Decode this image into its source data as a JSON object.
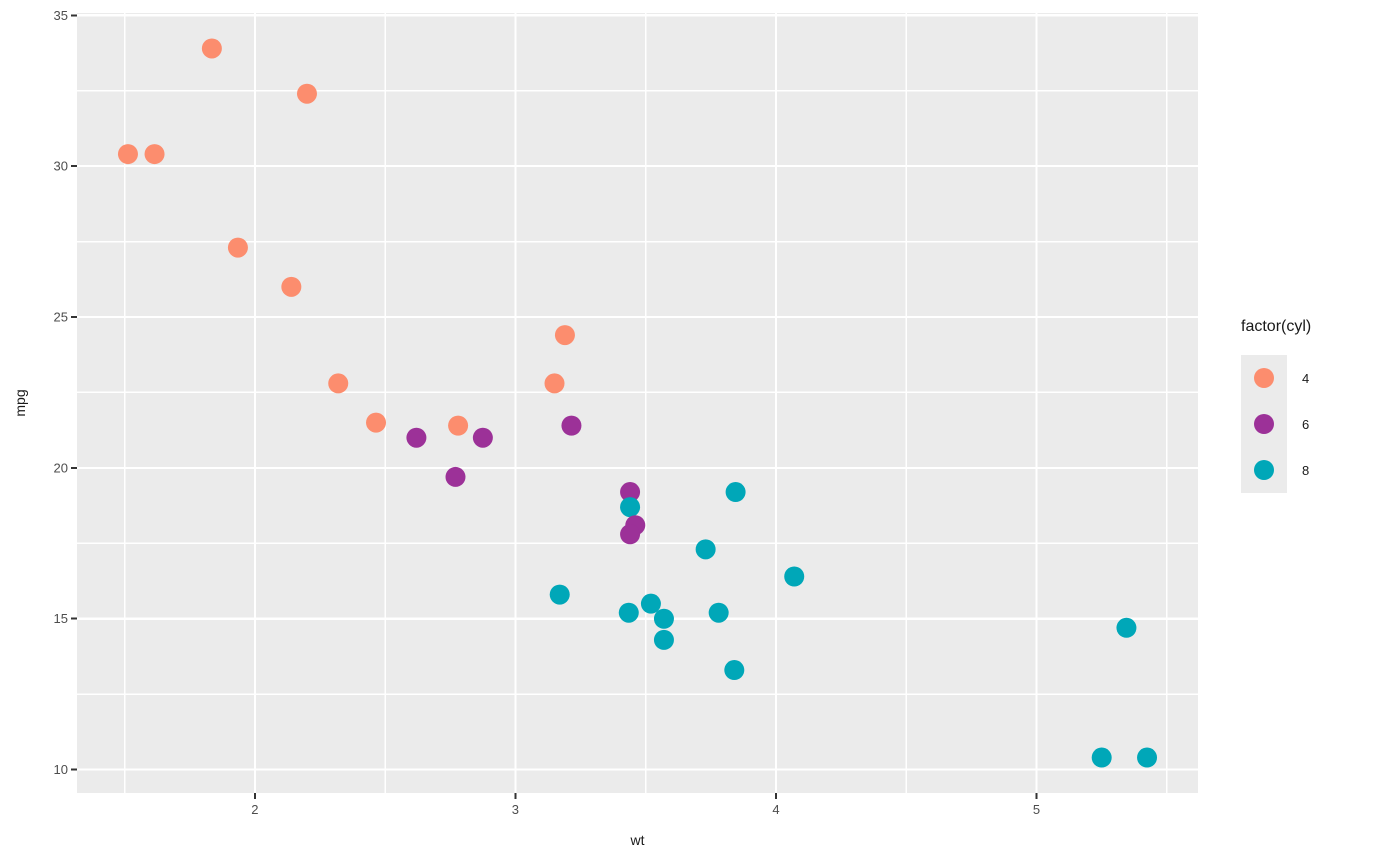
{
  "chart_data": {
    "type": "scatter",
    "title": "",
    "xlabel": "wt",
    "ylabel": "mpg",
    "xlim": [
      1.3174,
      5.6196
    ],
    "ylim": [
      9.225,
      35.075
    ],
    "x_major_ticks": [
      2,
      3,
      4,
      5
    ],
    "x_minor_gridlines": [
      1.5,
      2.5,
      3.5,
      4.5,
      5.5
    ],
    "y_major_ticks": [
      10,
      15,
      20,
      25,
      30,
      35
    ],
    "y_minor_gridlines": [
      12.5,
      17.5,
      22.5,
      27.5,
      32.5
    ],
    "grid": true,
    "panel_background": "#EBEBEB",
    "gridline_color": "#FFFFFF",
    "tick_mark_color": "#333333",
    "tick_label_color": "#4D4D4D",
    "point_radius": 10,
    "legend": {
      "title": "factor(cyl)",
      "position": "right",
      "key_background": "#EBEBEB",
      "entries": [
        {
          "label": "4",
          "color": "#FC8D6E"
        },
        {
          "label": "6",
          "color": "#9C3198"
        },
        {
          "label": "8",
          "color": "#00A7B8"
        }
      ]
    },
    "series": [
      {
        "name": "4",
        "color": "#FC8D6E",
        "points": [
          [
            1.513,
            30.4
          ],
          [
            1.615,
            30.4
          ],
          [
            1.835,
            33.9
          ],
          [
            1.935,
            27.3
          ],
          [
            2.14,
            26.0
          ],
          [
            2.2,
            32.4
          ],
          [
            2.32,
            22.8
          ],
          [
            2.465,
            21.5
          ],
          [
            2.78,
            21.4
          ],
          [
            3.15,
            22.8
          ],
          [
            3.19,
            24.4
          ]
        ]
      },
      {
        "name": "6",
        "color": "#9C3198",
        "points": [
          [
            2.62,
            21.0
          ],
          [
            2.77,
            19.7
          ],
          [
            2.875,
            21.0
          ],
          [
            3.215,
            21.4
          ],
          [
            3.44,
            19.2
          ],
          [
            3.44,
            17.8
          ],
          [
            3.46,
            18.1
          ]
        ]
      },
      {
        "name": "8",
        "color": "#00A7B8",
        "points": [
          [
            3.17,
            15.8
          ],
          [
            3.435,
            15.2
          ],
          [
            3.44,
            18.7
          ],
          [
            3.52,
            15.5
          ],
          [
            3.57,
            14.3
          ],
          [
            3.57,
            15.0
          ],
          [
            3.73,
            17.3
          ],
          [
            3.78,
            15.2
          ],
          [
            3.84,
            13.3
          ],
          [
            3.845,
            19.2
          ],
          [
            4.07,
            16.4
          ],
          [
            5.25,
            10.4
          ],
          [
            5.345,
            14.7
          ],
          [
            5.424,
            10.4
          ]
        ]
      }
    ]
  }
}
